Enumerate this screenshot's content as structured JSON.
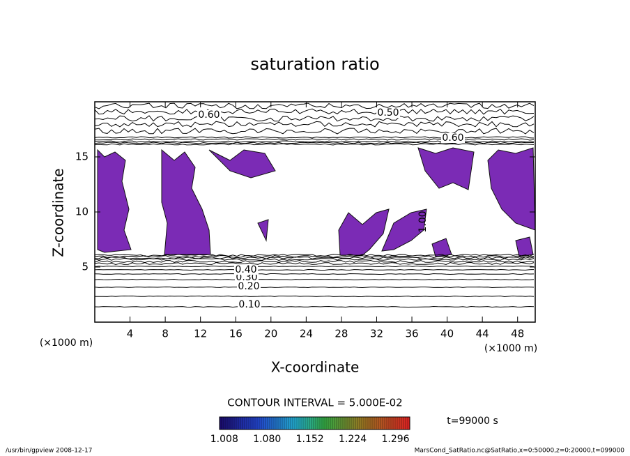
{
  "chart_data": {
    "type": "contour",
    "title": "saturation ratio",
    "x_label": "X-coordinate",
    "y_label": "Z-coordinate",
    "x_unit": "(×1000 m)",
    "y_unit": "(×1000 m)",
    "xlim": [
      0,
      50
    ],
    "xticks": [
      4,
      8,
      12,
      16,
      20,
      24,
      28,
      32,
      36,
      40,
      44,
      48
    ],
    "ylim": [
      0,
      20
    ],
    "yticks": [
      5,
      10,
      15
    ],
    "contour_labels": [
      {
        "value": 0.6,
        "label": "0.60"
      },
      {
        "value": 0.5,
        "label": "0.50"
      },
      {
        "value": 0.6,
        "label": "0.60"
      },
      {
        "value": 0.1,
        "label": "0.10"
      },
      {
        "value": 0.2,
        "label": "0.20"
      },
      {
        "value": 0.3,
        "label": "0.30"
      },
      {
        "value": 0.4,
        "label": "0.40"
      },
      {
        "value": 1.0,
        "label": "1.00"
      }
    ],
    "contour_interval_label": "CONTOUR INTERVAL = 5.000E-02",
    "shade_color": "#7b2bb5",
    "clim": [
      1.0,
      1.32
    ],
    "cticks": [
      1.008,
      {
        "value": 1.08,
        "label": "1.080"
      },
      1.152,
      1.224,
      1.296
    ],
    "time_label": "t=99000 s",
    "footer_left": "/usr/bin/gpview  2008-12-17",
    "footer_right": "MarsCond_SatRatio.nc@SatRatio,x=0:50000,z=0:20000,t=099000"
  }
}
